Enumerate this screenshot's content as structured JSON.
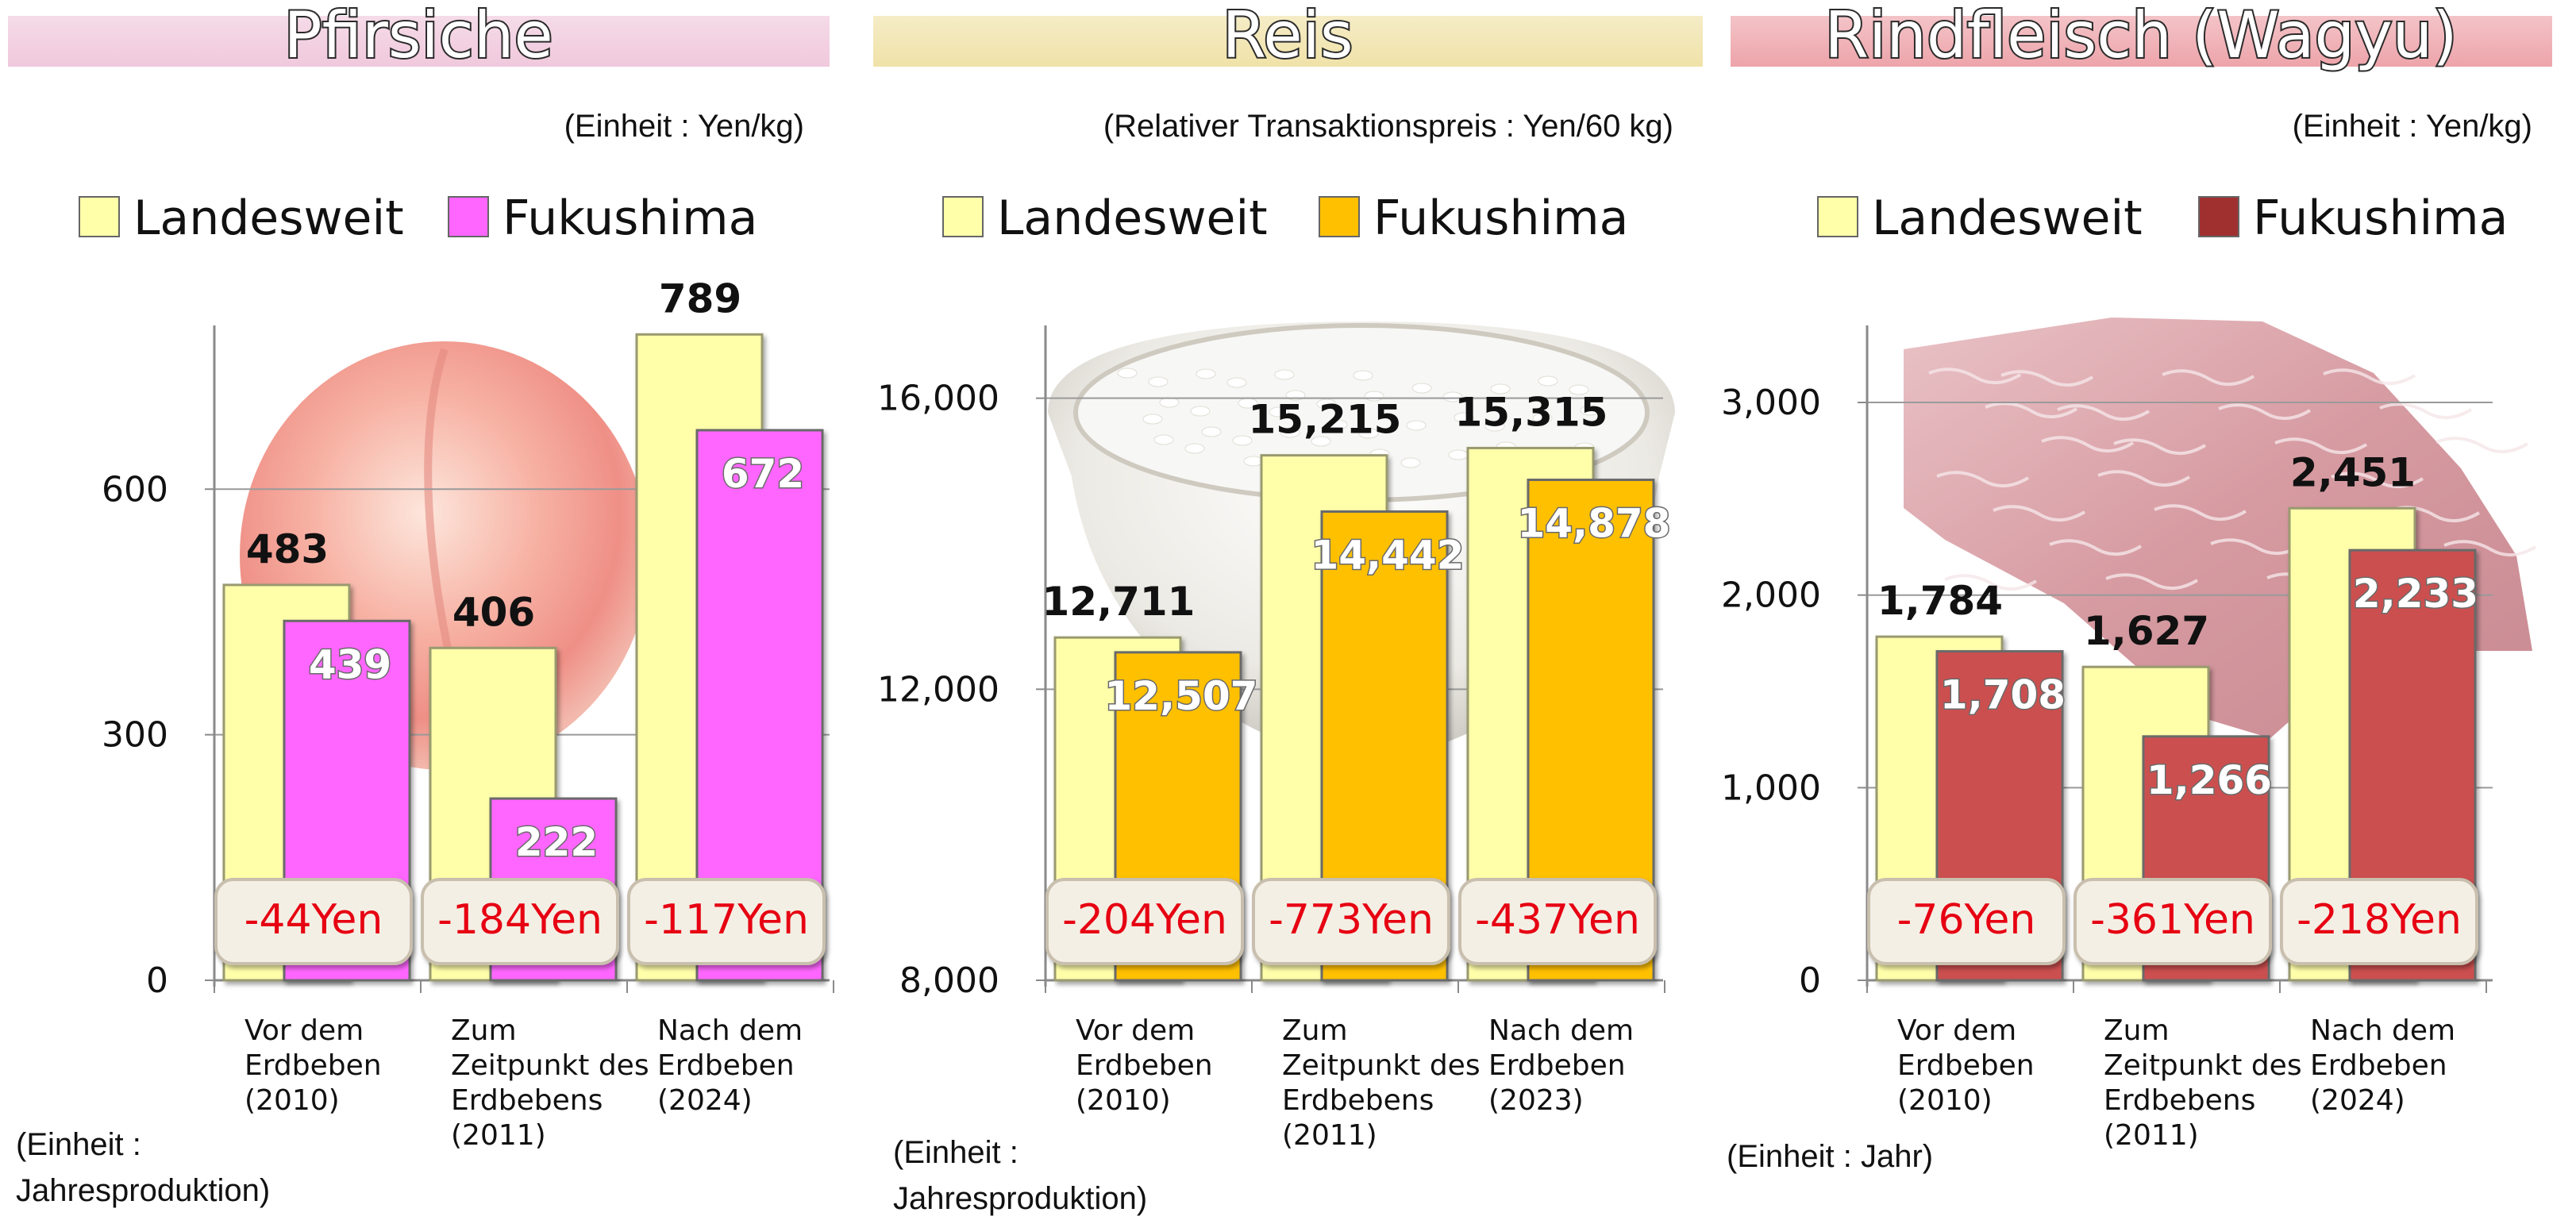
{
  "chart_data": [
    {
      "type": "bar",
      "title": "Pfirsiche",
      "unit_note": "(Einheit : Yen/kg)",
      "footnote": [
        "(Einheit :",
        "Jahresproduktion)"
      ],
      "legend": [
        {
          "label": "Landesweit",
          "color": "#ffffaa"
        },
        {
          "label": "Fukushima",
          "color": "#ff66ff"
        }
      ],
      "categories": [
        [
          "Vor dem",
          "Erdbeben",
          "(2010)"
        ],
        [
          "Zum",
          "Zeitpunkt des",
          "Erdbebens",
          "(2011)"
        ],
        [
          "Nach dem",
          "Erdbeben",
          "(2024)"
        ]
      ],
      "series": [
        {
          "name": "Landesweit",
          "values": [
            483,
            406,
            789
          ],
          "labels": [
            "483",
            "406",
            "789"
          ],
          "color": "#ffffaa"
        },
        {
          "name": "Fukushima",
          "values": [
            439,
            222,
            672
          ],
          "labels": [
            "439",
            "222",
            "672"
          ],
          "color": "#ff66ff"
        }
      ],
      "differences": [
        "-44Yen",
        "-184Yen",
        "-117Yen"
      ],
      "yticks": [
        0,
        300,
        600
      ],
      "ytick_labels": [
        "0",
        "300",
        "600"
      ],
      "ylim": [
        0,
        800
      ],
      "grid": true,
      "title_band_color": "#f0c8dc",
      "background_image": "peach-image"
    },
    {
      "type": "bar",
      "title": "Reis",
      "unit_note": "(Relativer Transaktionspreis : Yen/60 kg)",
      "footnote": [
        "(Einheit :",
        "Jahresproduktion)"
      ],
      "legend": [
        {
          "label": "Landesweit",
          "color": "#ffffaa"
        },
        {
          "label": "Fukushima",
          "color": "#ffc000"
        }
      ],
      "categories": [
        [
          "Vor dem",
          "Erdbeben",
          "(2010)"
        ],
        [
          "Zum",
          "Zeitpunkt des",
          "Erdbebens",
          "(2011)"
        ],
        [
          "Nach dem",
          "Erdbeben",
          "(2023)"
        ]
      ],
      "series": [
        {
          "name": "Landesweit",
          "values": [
            12711,
            15215,
            15315
          ],
          "labels": [
            "12,711",
            "15,215",
            "15,315"
          ],
          "color": "#ffffaa"
        },
        {
          "name": "Fukushima",
          "values": [
            12507,
            14442,
            14878
          ],
          "labels": [
            "12,507",
            "14,442",
            "14,878"
          ],
          "color": "#ffc000"
        }
      ],
      "differences": [
        "-204Yen",
        "-773Yen",
        "-437Yen"
      ],
      "yticks": [
        8000,
        12000,
        16000
      ],
      "ytick_labels": [
        "8,000",
        "12,000",
        "16,000"
      ],
      "ylim": [
        8000,
        17000
      ],
      "grid": true,
      "title_band_color": "#f0e2a8",
      "background_image": "rice-bowl-image"
    },
    {
      "type": "bar",
      "title": "Rindfleisch (Wagyu)",
      "unit_note": "(Einheit : Yen/kg)",
      "footnote": [
        "(Einheit : Jahr)"
      ],
      "legend": [
        {
          "label": "Landesweit",
          "color": "#ffffaa"
        },
        {
          "label": "Fukushima",
          "color": "#a03030"
        }
      ],
      "categories": [
        [
          "Vor dem",
          "Erdbeben",
          "(2010)"
        ],
        [
          "Zum",
          "Zeitpunkt des",
          "Erdbebens",
          "(2011)"
        ],
        [
          "Nach dem",
          "Erdbeben",
          "(2024)"
        ]
      ],
      "series": [
        {
          "name": "Landesweit",
          "values": [
            1784,
            1627,
            2451
          ],
          "labels": [
            "1,784",
            "1,627",
            "2,451"
          ],
          "color": "#ffffaa"
        },
        {
          "name": "Fukushima",
          "values": [
            1708,
            1266,
            2233
          ],
          "labels": [
            "1,708",
            "1,266",
            "2,233"
          ],
          "color": "#cc4f4f"
        }
      ],
      "differences": [
        "-76Yen",
        "-361Yen",
        "-218Yen"
      ],
      "yticks": [
        0,
        1000,
        2000,
        3000
      ],
      "ytick_labels": [
        "0",
        "1,000",
        "2,000",
        "3,000"
      ],
      "ylim": [
        0,
        3400
      ],
      "grid": true,
      "title_band_color": "#eda4aa",
      "background_image": "wagyu-beef-image"
    }
  ]
}
